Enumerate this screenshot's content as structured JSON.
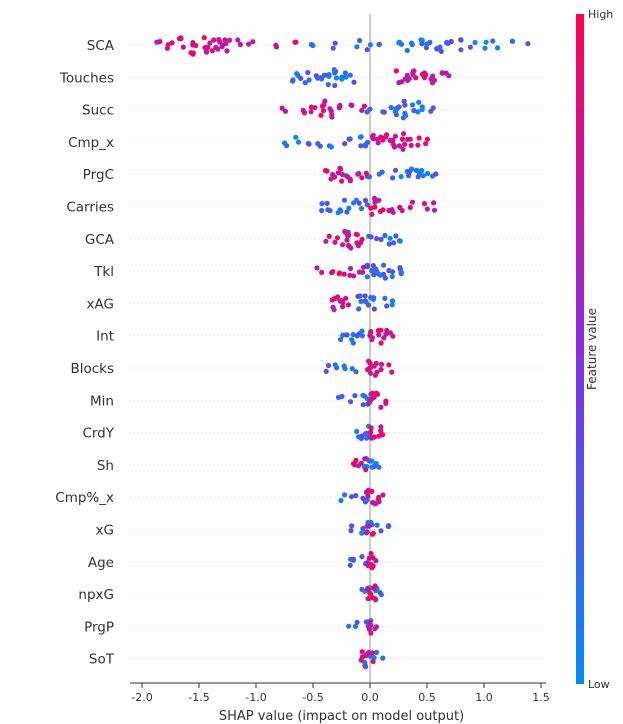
{
  "chart_data": {
    "type": "scatter",
    "subtype": "shap-beeswarm",
    "title": "",
    "xlabel": "SHAP value (impact on model output)",
    "ylabel": "",
    "xlim": [
      -2.0,
      1.5
    ],
    "xticks": [
      "-2.0",
      "-1.5",
      "-1.0",
      "-0.5",
      "0.0",
      "0.5",
      "1.0",
      "1.5"
    ],
    "features": [
      {
        "name": "SCA",
        "low": [
          [
            -0.5,
            0.1
          ],
          [
            -0.3,
            0.1
          ],
          [
            -0.1,
            0.15
          ],
          [
            0.0,
            0.15
          ],
          [
            0.1,
            0.12
          ],
          [
            0.25,
            0.2
          ],
          [
            0.35,
            0.2
          ],
          [
            0.45,
            0.2
          ],
          [
            0.5,
            0.25
          ],
          [
            0.6,
            0.25
          ],
          [
            0.7,
            0.25
          ],
          [
            0.8,
            0.2
          ],
          [
            0.9,
            0.15
          ],
          [
            1.0,
            0.1
          ],
          [
            1.1,
            0.1
          ],
          [
            1.25,
            0.1
          ],
          [
            1.4,
            0.05
          ]
        ],
        "high": [
          [
            -1.85,
            0.1
          ],
          [
            -1.75,
            0.2
          ],
          [
            -1.65,
            0.25
          ],
          [
            -1.55,
            0.35
          ],
          [
            -1.45,
            0.3
          ],
          [
            -1.38,
            0.25
          ],
          [
            -1.32,
            0.3
          ],
          [
            -1.25,
            0.25
          ],
          [
            -1.15,
            0.15
          ],
          [
            -1.05,
            0.1
          ],
          [
            -0.8,
            0.1
          ],
          [
            -0.65,
            0.15
          ]
        ]
      },
      {
        "name": "Touches",
        "low": [
          [
            -0.7,
            0.1
          ],
          [
            -0.62,
            0.2
          ],
          [
            -0.55,
            0.2
          ],
          [
            -0.45,
            0.25
          ],
          [
            -0.38,
            0.3
          ],
          [
            -0.3,
            0.3
          ],
          [
            -0.22,
            0.25
          ],
          [
            -0.15,
            0.15
          ]
        ],
        "high": [
          [
            0.25,
            0.2
          ],
          [
            0.32,
            0.25
          ],
          [
            0.4,
            0.3
          ],
          [
            0.48,
            0.3
          ],
          [
            0.55,
            0.25
          ],
          [
            0.62,
            0.15
          ],
          [
            0.68,
            0.1
          ]
        ]
      },
      {
        "name": "Succ",
        "low": [
          [
            0.0,
            0.1
          ],
          [
            0.1,
            0.1
          ],
          [
            0.2,
            0.15
          ],
          [
            0.25,
            0.3
          ],
          [
            0.32,
            0.3
          ],
          [
            0.4,
            0.25
          ],
          [
            0.48,
            0.15
          ],
          [
            0.53,
            0.1
          ]
        ],
        "high": [
          [
            -0.75,
            0.1
          ],
          [
            -0.6,
            0.1
          ],
          [
            -0.5,
            0.2
          ],
          [
            -0.42,
            0.3
          ],
          [
            -0.35,
            0.25
          ],
          [
            -0.25,
            0.2
          ],
          [
            -0.15,
            0.15
          ],
          [
            -0.05,
            0.1
          ]
        ]
      },
      {
        "name": "Cmp_x",
        "low": [
          [
            -0.75,
            0.1
          ],
          [
            -0.65,
            0.15
          ],
          [
            -0.55,
            0.15
          ],
          [
            -0.45,
            0.15
          ],
          [
            -0.35,
            0.15
          ],
          [
            -0.2,
            0.2
          ],
          [
            -0.1,
            0.2
          ],
          [
            -0.02,
            0.2
          ]
        ],
        "high": [
          [
            0.05,
            0.3
          ],
          [
            0.12,
            0.3
          ],
          [
            0.2,
            0.3
          ],
          [
            0.28,
            0.3
          ],
          [
            0.35,
            0.2
          ],
          [
            0.42,
            0.15
          ],
          [
            0.5,
            0.1
          ]
        ]
      },
      {
        "name": "PrgC",
        "low": [
          [
            0.0,
            0.1
          ],
          [
            0.1,
            0.1
          ],
          [
            0.2,
            0.1
          ],
          [
            0.3,
            0.1
          ],
          [
            0.35,
            0.2
          ],
          [
            0.42,
            0.25
          ],
          [
            0.48,
            0.2
          ],
          [
            0.55,
            0.1
          ]
        ],
        "high": [
          [
            -0.4,
            0.1
          ],
          [
            -0.32,
            0.2
          ],
          [
            -0.25,
            0.3
          ],
          [
            -0.18,
            0.25
          ],
          [
            -0.12,
            0.15
          ],
          [
            -0.05,
            0.1
          ]
        ]
      },
      {
        "name": "Carries",
        "low": [
          [
            -0.42,
            0.15
          ],
          [
            -0.35,
            0.2
          ],
          [
            -0.28,
            0.2
          ],
          [
            -0.2,
            0.2
          ],
          [
            -0.12,
            0.2
          ],
          [
            -0.05,
            0.2
          ]
        ],
        "high": [
          [
            0.02,
            0.3
          ],
          [
            0.1,
            0.2
          ],
          [
            0.18,
            0.2
          ],
          [
            0.28,
            0.15
          ],
          [
            0.38,
            0.15
          ],
          [
            0.48,
            0.1
          ],
          [
            0.58,
            0.1
          ]
        ]
      },
      {
        "name": "GCA",
        "low": [
          [
            0.0,
            0.1
          ],
          [
            0.08,
            0.15
          ],
          [
            0.15,
            0.2
          ],
          [
            0.22,
            0.15
          ],
          [
            0.25,
            0.1
          ]
        ],
        "high": [
          [
            -0.38,
            0.1
          ],
          [
            -0.3,
            0.15
          ],
          [
            -0.22,
            0.25
          ],
          [
            -0.17,
            0.35
          ],
          [
            -0.12,
            0.25
          ],
          [
            -0.08,
            0.1
          ]
        ]
      },
      {
        "name": "Tkl",
        "low": [
          [
            0.0,
            0.25
          ],
          [
            0.05,
            0.3
          ],
          [
            0.12,
            0.25
          ],
          [
            0.18,
            0.2
          ],
          [
            0.25,
            0.15
          ],
          [
            0.3,
            0.1
          ]
        ],
        "high": [
          [
            -0.45,
            0.1
          ],
          [
            -0.35,
            0.15
          ],
          [
            -0.25,
            0.2
          ],
          [
            -0.15,
            0.2
          ],
          [
            -0.08,
            0.2
          ]
        ]
      },
      {
        "name": "xAG",
        "low": [
          [
            -0.08,
            0.25
          ],
          [
            -0.02,
            0.3
          ],
          [
            0.05,
            0.2
          ],
          [
            0.12,
            0.15
          ],
          [
            0.18,
            0.1
          ]
        ],
        "high": [
          [
            -0.35,
            0.15
          ],
          [
            -0.3,
            0.25
          ],
          [
            -0.25,
            0.25
          ],
          [
            -0.2,
            0.15
          ]
        ]
      },
      {
        "name": "Int",
        "low": [
          [
            -0.25,
            0.1
          ],
          [
            -0.18,
            0.2
          ],
          [
            -0.12,
            0.25
          ],
          [
            -0.06,
            0.15
          ]
        ],
        "high": [
          [
            0.02,
            0.3
          ],
          [
            0.08,
            0.25
          ],
          [
            0.14,
            0.2
          ],
          [
            0.2,
            0.1
          ]
        ]
      },
      {
        "name": "Blocks",
        "low": [
          [
            -0.38,
            0.1
          ],
          [
            -0.3,
            0.1
          ],
          [
            -0.22,
            0.1
          ],
          [
            -0.15,
            0.1
          ]
        ],
        "high": [
          [
            0.0,
            0.35
          ],
          [
            0.05,
            0.25
          ],
          [
            0.12,
            0.15
          ],
          [
            0.18,
            0.1
          ]
        ]
      },
      {
        "name": "Min",
        "low": [
          [
            -0.25,
            0.1
          ],
          [
            -0.15,
            0.15
          ],
          [
            -0.07,
            0.2
          ],
          [
            -0.02,
            0.2
          ]
        ],
        "high": [
          [
            0.02,
            0.35
          ],
          [
            0.08,
            0.25
          ],
          [
            0.14,
            0.15
          ]
        ]
      },
      {
        "name": "CrdY",
        "low": [
          [
            -0.1,
            0.2
          ],
          [
            -0.05,
            0.25
          ],
          [
            0.0,
            0.2
          ]
        ],
        "high": [
          [
            0.03,
            0.25
          ],
          [
            0.08,
            0.2
          ],
          [
            0.12,
            0.1
          ]
        ]
      },
      {
        "name": "Sh",
        "low": [
          [
            -0.03,
            0.25
          ],
          [
            0.02,
            0.2
          ],
          [
            0.08,
            0.1
          ]
        ],
        "high": [
          [
            -0.15,
            0.1
          ],
          [
            -0.1,
            0.15
          ],
          [
            -0.05,
            0.2
          ]
        ]
      },
      {
        "name": "Cmp%_x",
        "low": [
          [
            -0.25,
            0.1
          ],
          [
            -0.15,
            0.1
          ],
          [
            -0.06,
            0.15
          ],
          [
            -0.02,
            0.2
          ]
        ],
        "high": [
          [
            0.0,
            0.3
          ],
          [
            0.05,
            0.25
          ],
          [
            0.1,
            0.15
          ]
        ]
      },
      {
        "name": "xG",
        "low": [
          [
            -0.15,
            0.1
          ],
          [
            -0.08,
            0.15
          ],
          [
            0.0,
            0.3
          ],
          [
            0.08,
            0.15
          ],
          [
            0.14,
            0.1
          ]
        ],
        "high": [
          [
            -0.02,
            0.2
          ],
          [
            0.03,
            0.15
          ]
        ]
      },
      {
        "name": "Age",
        "low": [
          [
            -0.18,
            0.1
          ],
          [
            -0.12,
            0.1
          ],
          [
            -0.05,
            0.15
          ]
        ],
        "high": [
          [
            0.0,
            0.35
          ],
          [
            0.04,
            0.2
          ]
        ]
      },
      {
        "name": "npxG",
        "low": [
          [
            -0.05,
            0.15
          ],
          [
            0.0,
            0.2
          ],
          [
            0.05,
            0.2
          ],
          [
            0.1,
            0.1
          ]
        ],
        "high": [
          [
            -0.02,
            0.2
          ],
          [
            0.03,
            0.3
          ]
        ]
      },
      {
        "name": "PrgP",
        "low": [
          [
            -0.2,
            0.05
          ],
          [
            -0.1,
            0.1
          ],
          [
            -0.03,
            0.15
          ],
          [
            0.0,
            0.2
          ]
        ],
        "high": [
          [
            0.02,
            0.25
          ],
          [
            0.06,
            0.15
          ]
        ]
      },
      {
        "name": "SoT",
        "low": [
          [
            -0.02,
            0.3
          ],
          [
            0.03,
            0.2
          ],
          [
            0.1,
            0.05
          ]
        ],
        "high": [
          [
            -0.05,
            0.25
          ],
          [
            0.0,
            0.2
          ]
        ]
      }
    ],
    "colorbar": {
      "title": "Feature value",
      "high_label": "High",
      "low_label": "Low",
      "high_color": "#ff0052",
      "mid_color": "#8a2be2",
      "low_color": "#008bfb"
    },
    "grid": false,
    "legend": "right"
  }
}
